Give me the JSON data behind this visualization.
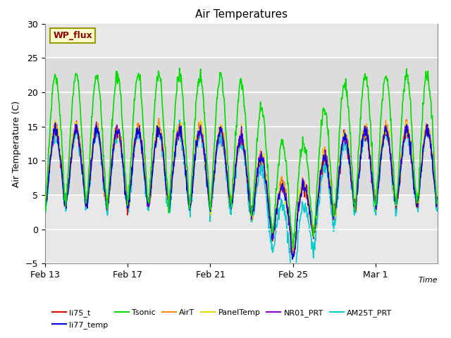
{
  "title": "Air Temperatures",
  "ylabel": "Air Temperature (C)",
  "xlabel": "Time",
  "ylim": [
    -5,
    30
  ],
  "xtick_labels": [
    "Feb 13",
    "Feb 17",
    "Feb 21",
    "Feb 25",
    "Mar 1"
  ],
  "xtick_positions": [
    0,
    4,
    8,
    12,
    16
  ],
  "series": {
    "li75_t": {
      "color": "#dd0000",
      "lw": 1.0
    },
    "li77_temp": {
      "color": "#0000dd",
      "lw": 1.0
    },
    "Tsonic": {
      "color": "#00dd00",
      "lw": 1.2
    },
    "AirT": {
      "color": "#ff8800",
      "lw": 1.0
    },
    "PanelTemp": {
      "color": "#dddd00",
      "lw": 1.0
    },
    "NR01_PRT": {
      "color": "#8800cc",
      "lw": 1.0
    },
    "AM25T_PRT": {
      "color": "#00cccc",
      "lw": 1.2
    }
  },
  "annotation_text": "WP_flux",
  "plot_bg_color": "#e8e8e8",
  "band_color": "#d0d0d0",
  "n_days": 19,
  "pts_per_day": 48,
  "legend_ncol": 6
}
